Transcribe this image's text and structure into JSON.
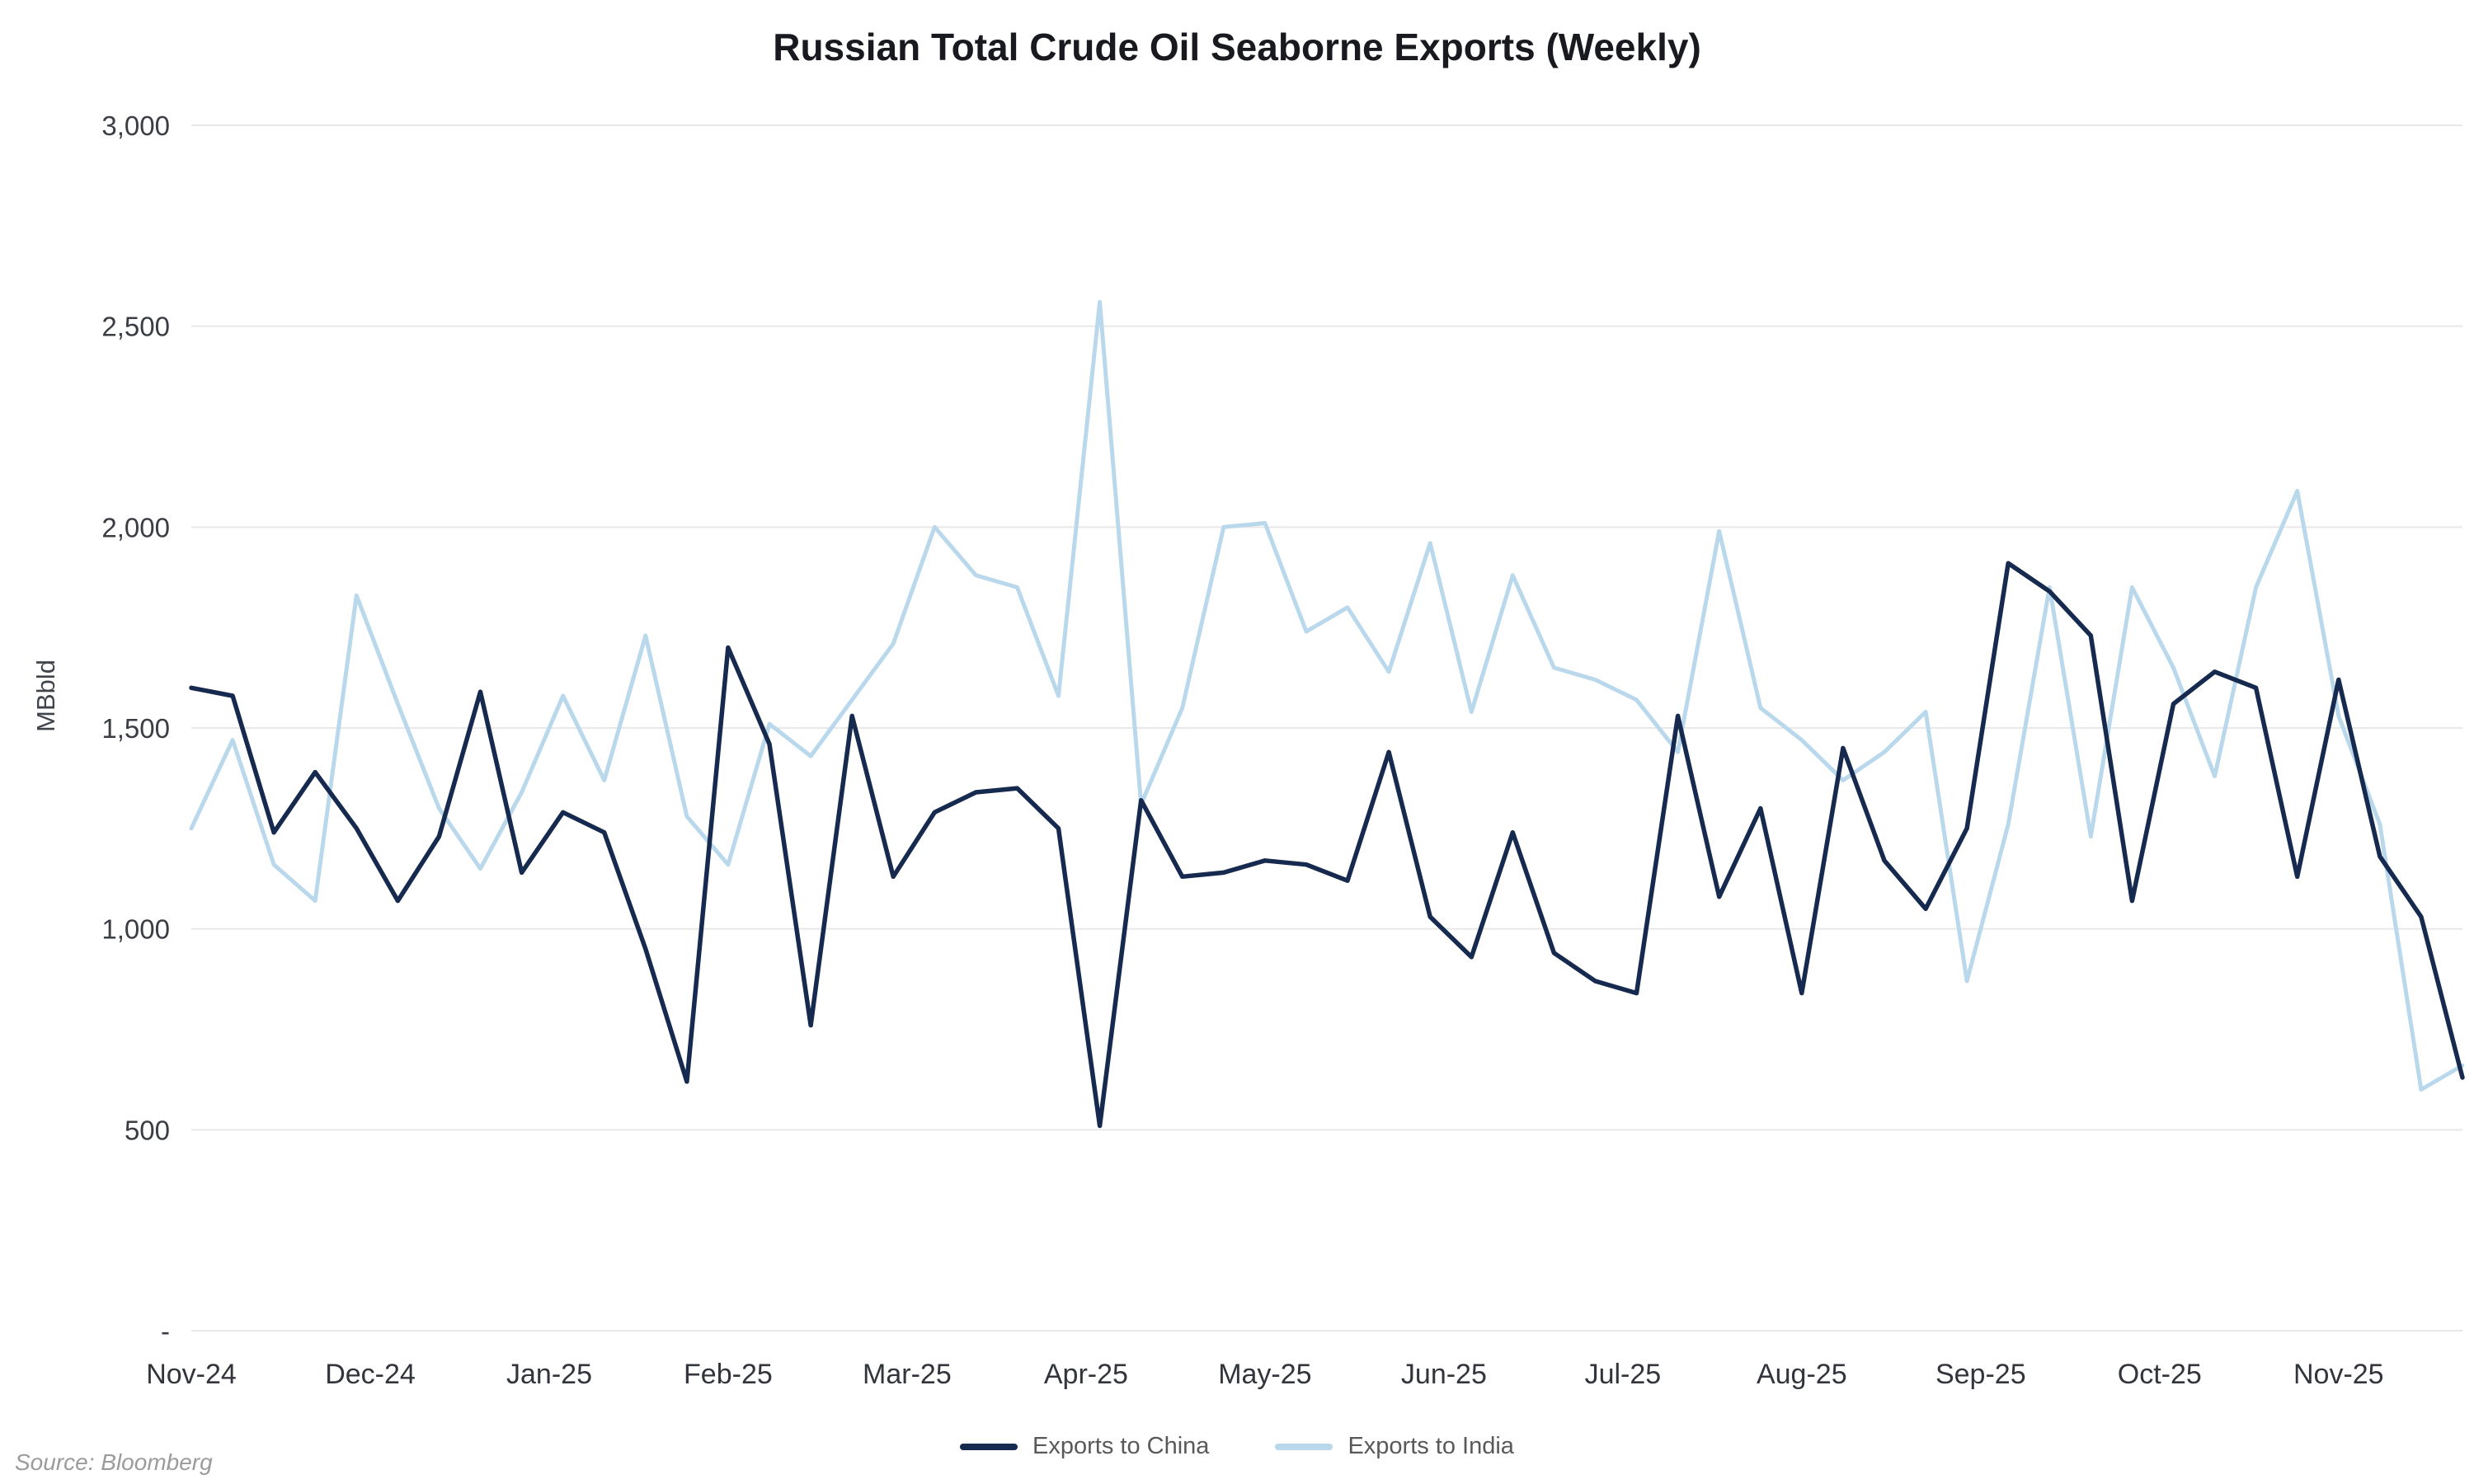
{
  "page": {
    "source": "Source: Bloomberg"
  },
  "chart_data": {
    "type": "line",
    "title": "Russian Total Crude Oil Seaborne Exports (Weekly)",
    "xlabel": "",
    "ylabel": "MBbld",
    "ylim": [
      0,
      3000
    ],
    "grid": "horizontal",
    "legend_position": "bottom-center",
    "x_unit": "week",
    "yticks": [
      {
        "value": 0,
        "label": "-"
      },
      {
        "value": 500,
        "label": "500"
      },
      {
        "value": 1000,
        "label": "1,000"
      },
      {
        "value": 1500,
        "label": "1,500"
      },
      {
        "value": 2000,
        "label": "2,000"
      },
      {
        "value": 2500,
        "label": "2,500"
      },
      {
        "value": 3000,
        "label": "3,000"
      }
    ],
    "x_labels": [
      "Nov-24",
      "Dec-24",
      "Jan-25",
      "Feb-25",
      "Mar-25",
      "Apr-25",
      "May-25",
      "Jun-25",
      "Jul-25",
      "Aug-25",
      "Sep-25",
      "Oct-25",
      "Nov-25"
    ],
    "series": [
      {
        "name": "Exports to China",
        "color": "#16294e",
        "values": [
          1600,
          1580,
          1240,
          1390,
          1250,
          1070,
          1230,
          1590,
          1140,
          1290,
          1240,
          950,
          620,
          1700,
          1460,
          760,
          1530,
          1130,
          1290,
          1340,
          1350,
          1250,
          510,
          1320,
          1130,
          1140,
          1170,
          1160,
          1120,
          1440,
          1030,
          930,
          1240,
          940,
          870,
          840,
          1530,
          1080,
          1300,
          840,
          1450,
          1170,
          1050,
          1250,
          1910,
          1840,
          1730,
          1070,
          1560,
          1640,
          1600,
          1130,
          1620,
          1180,
          1030,
          630
        ]
      },
      {
        "name": "Exports to India",
        "color": "#b9d8ec",
        "values": [
          1250,
          1470,
          1160,
          1070,
          1830,
          1560,
          1300,
          1150,
          1340,
          1580,
          1370,
          1730,
          1280,
          1160,
          1510,
          1430,
          1570,
          1710,
          2000,
          1880,
          1850,
          1580,
          2560,
          1310,
          1550,
          2000,
          2010,
          1740,
          1800,
          1640,
          1960,
          1540,
          1880,
          1650,
          1620,
          1570,
          1440,
          1990,
          1550,
          1470,
          1370,
          1440,
          1540,
          870,
          1260,
          1850,
          1230,
          1850,
          1650,
          1380,
          1850,
          2090,
          1530,
          1260,
          600,
          660
        ]
      }
    ]
  }
}
